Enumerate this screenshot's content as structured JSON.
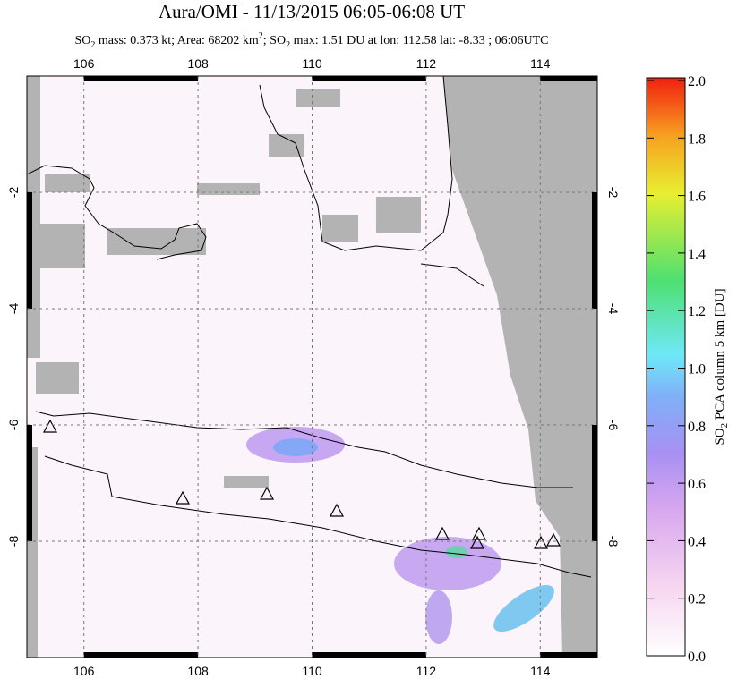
{
  "map": {
    "title": "Aura/OMI - 11/13/2015 06:05-06:08 UT",
    "subtitle": [
      "SO",
      "2",
      " mass: 0.373 kt; Area: 68202 km",
      "2",
      "; SO",
      "2",
      " max: 1.51 DU at lon: 112.58 lat: -8.33 ; 06:06UTC"
    ],
    "xlim": [
      105,
      115
    ],
    "ylim": [
      -10,
      0
    ],
    "xticks": [
      106,
      108,
      110,
      112,
      114
    ],
    "yticks": [
      -2,
      -4,
      -6,
      -8
    ],
    "colorbar": {
      "label": [
        "SO",
        "2",
        " PCA column 5 km [DU]"
      ],
      "lim": [
        0,
        2
      ],
      "ticks": [
        {
          "value": 0,
          "label": "0.0"
        },
        {
          "value": 0.2,
          "label": "0.2"
        },
        {
          "value": 0.4,
          "label": "0.4"
        },
        {
          "value": 0.6,
          "label": "0.6"
        },
        {
          "value": 0.8,
          "label": "0.8"
        },
        {
          "value": 1,
          "label": "1.0"
        },
        {
          "value": 1.2,
          "label": "1.2"
        },
        {
          "value": 1.4,
          "label": "1.4"
        },
        {
          "value": 1.6,
          "label": "1.6"
        },
        {
          "value": 1.8,
          "label": "1.8"
        },
        {
          "value": 2,
          "label": "2.0"
        }
      ]
    }
  }
}
